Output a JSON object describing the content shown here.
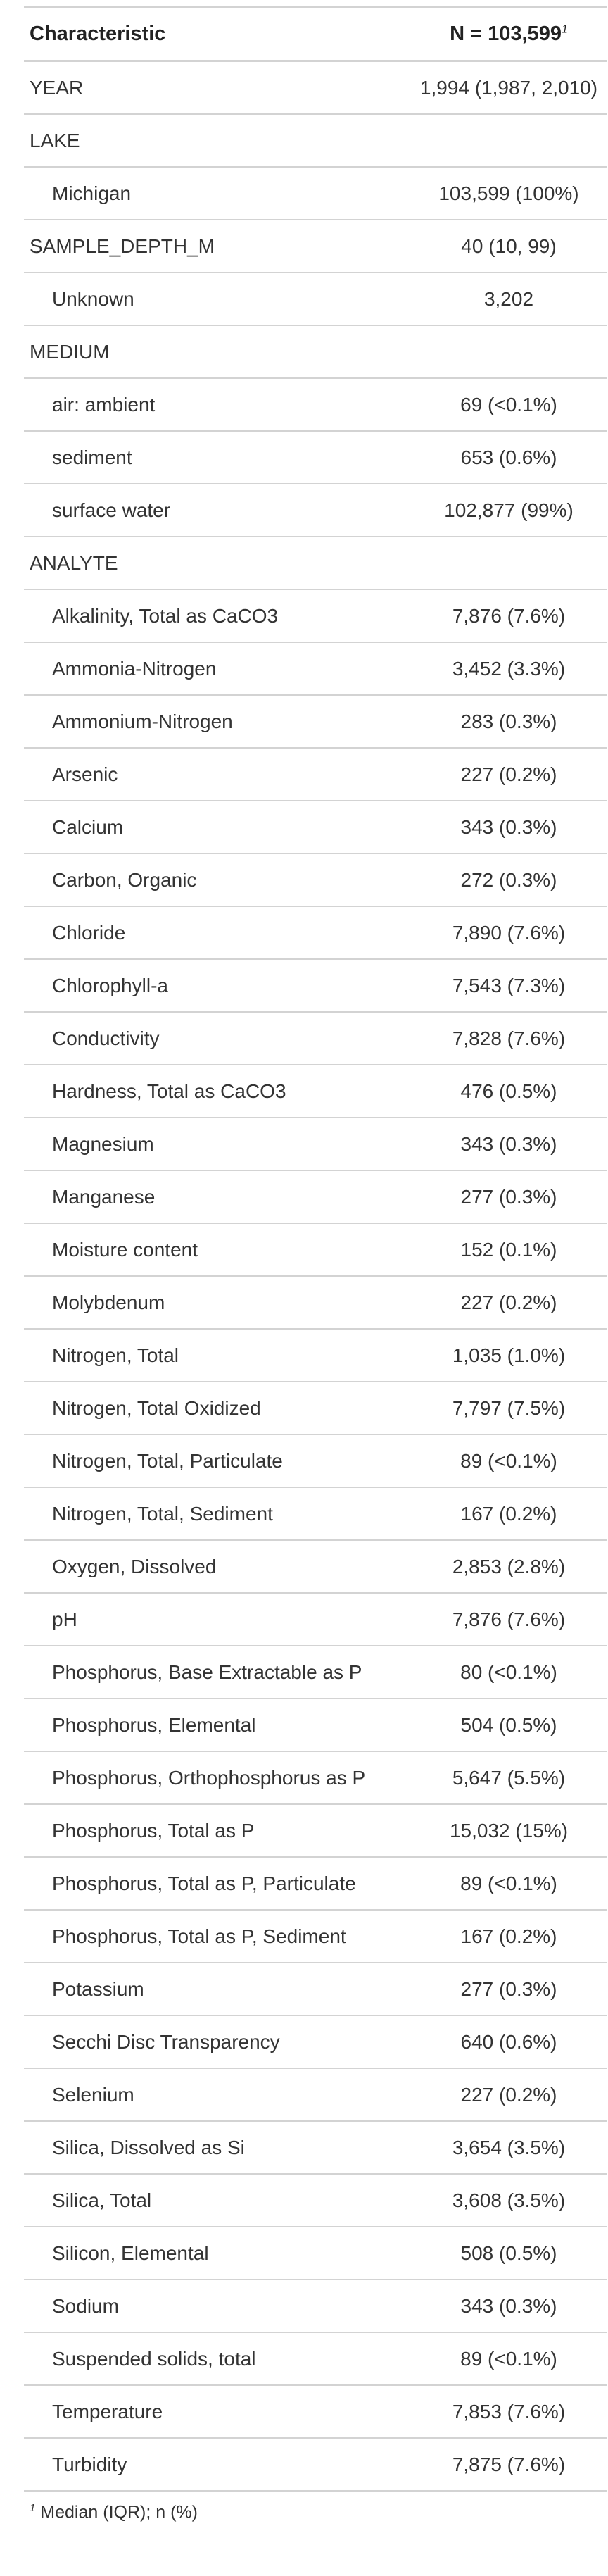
{
  "table": {
    "header": {
      "characteristic": "Characteristic",
      "n_label": "N = 103,599",
      "n_footnote_mark": "1"
    },
    "rows": [
      {
        "label": "YEAR",
        "value": "1,994 (1,987, 2,010)",
        "level": false
      },
      {
        "label": "LAKE",
        "value": "",
        "level": false
      },
      {
        "label": "Michigan",
        "value": "103,599 (100%)",
        "level": true
      },
      {
        "label": "SAMPLE_DEPTH_M",
        "value": "40 (10, 99)",
        "level": false
      },
      {
        "label": "Unknown",
        "value": "3,202",
        "level": true
      },
      {
        "label": "MEDIUM",
        "value": "",
        "level": false
      },
      {
        "label": "air: ambient",
        "value": "69 (<0.1%)",
        "level": true
      },
      {
        "label": "sediment",
        "value": "653 (0.6%)",
        "level": true
      },
      {
        "label": "surface water",
        "value": "102,877 (99%)",
        "level": true
      },
      {
        "label": "ANALYTE",
        "value": "",
        "level": false
      },
      {
        "label": "Alkalinity, Total as CaCO3",
        "value": "7,876 (7.6%)",
        "level": true
      },
      {
        "label": "Ammonia-Nitrogen",
        "value": "3,452 (3.3%)",
        "level": true
      },
      {
        "label": "Ammonium-Nitrogen",
        "value": "283 (0.3%)",
        "level": true
      },
      {
        "label": "Arsenic",
        "value": "227 (0.2%)",
        "level": true
      },
      {
        "label": "Calcium",
        "value": "343 (0.3%)",
        "level": true
      },
      {
        "label": "Carbon, Organic",
        "value": "272 (0.3%)",
        "level": true
      },
      {
        "label": "Chloride",
        "value": "7,890 (7.6%)",
        "level": true
      },
      {
        "label": "Chlorophyll-a",
        "value": "7,543 (7.3%)",
        "level": true
      },
      {
        "label": "Conductivity",
        "value": "7,828 (7.6%)",
        "level": true
      },
      {
        "label": "Hardness, Total as CaCO3",
        "value": "476 (0.5%)",
        "level": true
      },
      {
        "label": "Magnesium",
        "value": "343 (0.3%)",
        "level": true
      },
      {
        "label": "Manganese",
        "value": "277 (0.3%)",
        "level": true
      },
      {
        "label": "Moisture content",
        "value": "152 (0.1%)",
        "level": true
      },
      {
        "label": "Molybdenum",
        "value": "227 (0.2%)",
        "level": true
      },
      {
        "label": "Nitrogen, Total",
        "value": "1,035 (1.0%)",
        "level": true
      },
      {
        "label": "Nitrogen, Total Oxidized",
        "value": "7,797 (7.5%)",
        "level": true
      },
      {
        "label": "Nitrogen, Total, Particulate",
        "value": "89 (<0.1%)",
        "level": true
      },
      {
        "label": "Nitrogen, Total, Sediment",
        "value": "167 (0.2%)",
        "level": true
      },
      {
        "label": "Oxygen, Dissolved",
        "value": "2,853 (2.8%)",
        "level": true
      },
      {
        "label": "pH",
        "value": "7,876 (7.6%)",
        "level": true
      },
      {
        "label": "Phosphorus, Base Extractable as P",
        "value": "80 (<0.1%)",
        "level": true
      },
      {
        "label": "Phosphorus, Elemental",
        "value": "504 (0.5%)",
        "level": true
      },
      {
        "label": "Phosphorus, Orthophosphorus as P",
        "value": "5,647 (5.5%)",
        "level": true
      },
      {
        "label": "Phosphorus, Total as P",
        "value": "15,032 (15%)",
        "level": true
      },
      {
        "label": "Phosphorus, Total as P, Particulate",
        "value": "89 (<0.1%)",
        "level": true
      },
      {
        "label": "Phosphorus, Total as P, Sediment",
        "value": "167 (0.2%)",
        "level": true
      },
      {
        "label": "Potassium",
        "value": "277 (0.3%)",
        "level": true
      },
      {
        "label": "Secchi Disc Transparency",
        "value": "640 (0.6%)",
        "level": true
      },
      {
        "label": "Selenium",
        "value": "227 (0.2%)",
        "level": true
      },
      {
        "label": "Silica, Dissolved as Si",
        "value": "3,654 (3.5%)",
        "level": true
      },
      {
        "label": "Silica, Total",
        "value": "3,608 (3.5%)",
        "level": true
      },
      {
        "label": "Silicon, Elemental",
        "value": "508 (0.5%)",
        "level": true
      },
      {
        "label": "Sodium",
        "value": "343 (0.3%)",
        "level": true
      },
      {
        "label": "Suspended solids, total",
        "value": "89 (<0.1%)",
        "level": true
      },
      {
        "label": "Temperature",
        "value": "7,853 (7.6%)",
        "level": true
      },
      {
        "label": "Turbidity",
        "value": "7,875 (7.6%)",
        "level": true
      }
    ],
    "footnote": {
      "mark": "1",
      "text": "Median (IQR); n (%)"
    }
  }
}
